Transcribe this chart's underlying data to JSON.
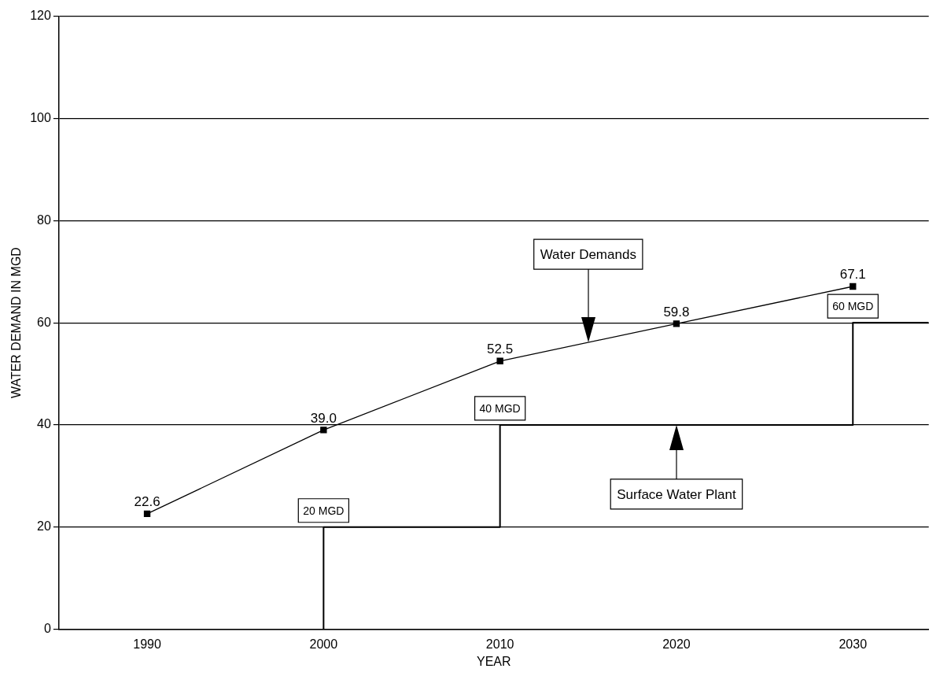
{
  "chart_data": {
    "type": "line",
    "xlabel": "YEAR",
    "ylabel": "WATER DEMAND IN MGD",
    "xlim": [
      1985,
      2034.3
    ],
    "xticks": [
      1990,
      2000,
      2010,
      2020,
      2030
    ],
    "ylim": [
      0,
      120
    ],
    "yticks": [
      0,
      20,
      40,
      60,
      80,
      100,
      120
    ],
    "grid": "y",
    "legend": false,
    "marker": "square",
    "line_style": "solid",
    "series": [
      {
        "color": "#000000",
        "x": [
          1990,
          2000,
          2010,
          2020,
          2030
        ],
        "values": [
          22.6,
          39.0,
          52.5,
          59.8,
          67.1
        ],
        "value_labels": [
          "22.6",
          "39.0",
          "52.5",
          "59.8",
          "67.1"
        ]
      },
      {
        "type": "step",
        "color": "#000000",
        "marker": "none",
        "x": [
          2000,
          2000,
          2010,
          2030,
          2034.3
        ],
        "values": [
          0,
          20,
          40,
          60,
          60
        ]
      }
    ],
    "annotations": [
      "Water Demands",
      "Surface Water Plant",
      {
        "text": "20 MGD",
        "x": 2000,
        "y": 20
      },
      {
        "text": "40 MGD",
        "x": 2010,
        "y": 40
      },
      {
        "text": "60 MGD",
        "x": 2030,
        "y": 60
      }
    ]
  }
}
